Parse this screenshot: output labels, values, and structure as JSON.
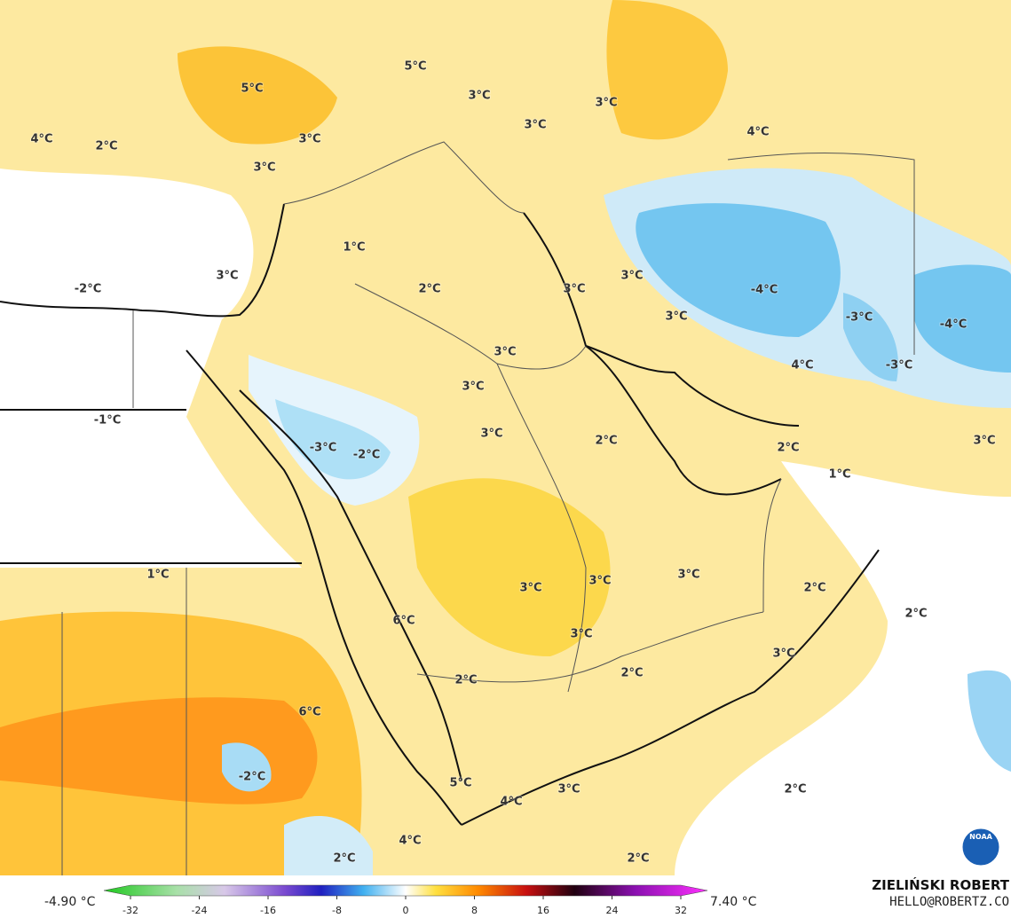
{
  "map": {
    "labels": [
      "5°C",
      "5°C",
      "3°C",
      "3°C",
      "4°C",
      "2°C",
      "3°C",
      "3°C",
      "4°C",
      "3°C",
      "1°C",
      "3°C",
      "-2°C",
      "2°C",
      "3°C",
      "3°C",
      "-4°C",
      "3°C",
      "-3°C",
      "-4°C",
      "3°C",
      "4°C",
      "-3°C",
      "3°C",
      "-1°C",
      "3°C",
      "2°C",
      "2°C",
      "3°C",
      "-3°C",
      "-2°C",
      "1°C",
      "1°C",
      "3°C",
      "3°C",
      "3°C",
      "2°C",
      "2°C",
      "6°C",
      "3°C",
      "3°C",
      "2°C",
      "2°C",
      "6°C",
      "-2°C",
      "5°C",
      "3°C",
      "2°C",
      "4°C",
      "4°C",
      "2°C",
      "2°C"
    ]
  },
  "legend": {
    "min_label": "-4.90 °C",
    "max_label": "7.40 °C",
    "ticks": [
      -32,
      -24,
      -16,
      -8,
      0,
      8,
      16,
      24,
      32
    ]
  },
  "credit": {
    "author": "ZIELIŃSKI ROBERT",
    "contact": "HELLO@ROBERTZ.CO",
    "logo": "NOAA"
  }
}
